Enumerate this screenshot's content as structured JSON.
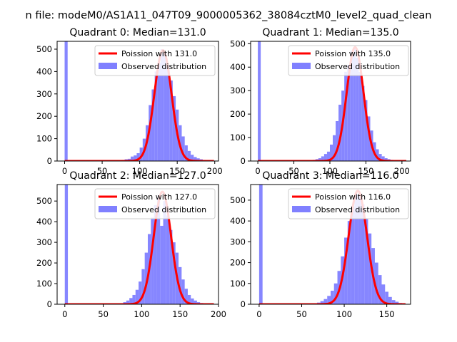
{
  "figure": {
    "suptitle": "n file: modeM0/AS1A11_047T09_9000005362_38084cztM0_level2_quad_clean"
  },
  "colors": {
    "poisson_line": "#ff0000",
    "histogram": "#8080ff",
    "axes": "#000000"
  },
  "chart_data": [
    {
      "type": "bar",
      "title": "Quadrant 0: Median=131.0",
      "xlim": [
        -10,
        205
      ],
      "ylim": [
        0,
        535
      ],
      "xticks": [
        0,
        50,
        100,
        150,
        200
      ],
      "yticks": [
        0,
        100,
        200,
        300,
        400,
        500
      ],
      "xtick_labels": [
        "0",
        "50",
        "100",
        "150",
        "200"
      ],
      "ytick_labels": [
        "0",
        "100",
        "200",
        "300",
        "400",
        "500"
      ],
      "legend": [
        "Poission with 131.0",
        "Observed distribution"
      ],
      "poisson_mean": 131.0,
      "poisson_peak": 495,
      "hist": {
        "bin_width": 4,
        "x": [
          0,
          76,
          80,
          84,
          88,
          92,
          96,
          100,
          104,
          108,
          112,
          116,
          120,
          124,
          128,
          132,
          136,
          140,
          144,
          148,
          152,
          156,
          160,
          164,
          168,
          172,
          176,
          180,
          184,
          188,
          192
        ],
        "values": [
          535,
          5,
          8,
          10,
          20,
          25,
          35,
          60,
          100,
          160,
          250,
          320,
          400,
          440,
          500,
          485,
          430,
          360,
          290,
          230,
          160,
          110,
          70,
          45,
          28,
          18,
          12,
          8,
          5,
          3,
          2
        ]
      }
    },
    {
      "type": "bar",
      "title": "Quadrant 1: Median=135.0",
      "xlim": [
        -10,
        212
      ],
      "ylim": [
        0,
        510
      ],
      "xticks": [
        0,
        50,
        100,
        150,
        200
      ],
      "yticks": [
        0,
        100,
        200,
        300,
        400,
        500
      ],
      "xtick_labels": [
        "0",
        "50",
        "100",
        "150",
        "200"
      ],
      "ytick_labels": [
        "0",
        "100",
        "200",
        "300",
        "400",
        "500"
      ],
      "legend": [
        "Poission with 135.0",
        "Observed distribution"
      ],
      "poisson_mean": 135.0,
      "poisson_peak": 485,
      "hist": {
        "bin_width": 4,
        "x": [
          0,
          76,
          80,
          84,
          88,
          92,
          96,
          100,
          104,
          108,
          112,
          116,
          120,
          124,
          128,
          132,
          136,
          140,
          144,
          148,
          152,
          156,
          160,
          164,
          168,
          172,
          176,
          180,
          184,
          188,
          192
        ],
        "values": [
          510,
          5,
          8,
          12,
          20,
          30,
          40,
          70,
          110,
          170,
          240,
          300,
          380,
          410,
          470,
          480,
          440,
          380,
          320,
          260,
          190,
          130,
          80,
          50,
          30,
          20,
          12,
          8,
          5,
          3,
          2
        ]
      }
    },
    {
      "type": "bar",
      "title": "Quadrant 2: Median=127.0",
      "xlim": [
        -10,
        200
      ],
      "ylim": [
        0,
        580
      ],
      "xticks": [
        0,
        50,
        100,
        150,
        200
      ],
      "yticks": [
        0,
        100,
        200,
        300,
        400,
        500
      ],
      "xtick_labels": [
        "0",
        "50",
        "100",
        "150",
        "200"
      ],
      "ytick_labels": [
        "0",
        "100",
        "200",
        "300",
        "400",
        "500"
      ],
      "legend": [
        "Poission with 127.0",
        "Observed distribution"
      ],
      "poisson_mean": 127.0,
      "poisson_peak": 545,
      "hist": {
        "bin_width": 4,
        "x": [
          0,
          72,
          76,
          80,
          84,
          88,
          92,
          96,
          100,
          104,
          108,
          112,
          116,
          120,
          124,
          128,
          132,
          136,
          140,
          144,
          148,
          152,
          156,
          160,
          164,
          168,
          172,
          176,
          180,
          184
        ],
        "values": [
          580,
          5,
          10,
          18,
          30,
          45,
          70,
          110,
          170,
          250,
          340,
          420,
          480,
          520,
          380,
          500,
          430,
          360,
          300,
          250,
          180,
          120,
          75,
          45,
          28,
          18,
          10,
          6,
          4,
          2
        ]
      }
    },
    {
      "type": "bar",
      "title": "Quadrant 3: Median=116.0",
      "xlim": [
        -10,
        178
      ],
      "ylim": [
        0,
        575
      ],
      "xticks": [
        0,
        50,
        100,
        150
      ],
      "yticks": [
        0,
        100,
        200,
        300,
        400,
        500
      ],
      "xtick_labels": [
        "0",
        "50",
        "100",
        "150"
      ],
      "ytick_labels": [
        "0",
        "100",
        "200",
        "300",
        "400",
        "500"
      ],
      "legend": [
        "Poission with 116.0",
        "Observed distribution"
      ],
      "poisson_mean": 116.0,
      "poisson_peak": 545,
      "hist": {
        "bin_width": 4,
        "x": [
          0,
          64,
          68,
          72,
          76,
          80,
          84,
          88,
          92,
          96,
          100,
          104,
          108,
          112,
          116,
          120,
          124,
          128,
          132,
          136,
          140,
          144,
          148,
          152,
          156,
          160,
          164,
          168
        ],
        "values": [
          575,
          4,
          8,
          15,
          25,
          40,
          65,
          100,
          160,
          230,
          320,
          400,
          470,
          530,
          520,
          480,
          410,
          340,
          270,
          200,
          140,
          95,
          60,
          35,
          20,
          12,
          6,
          3
        ]
      }
    }
  ]
}
